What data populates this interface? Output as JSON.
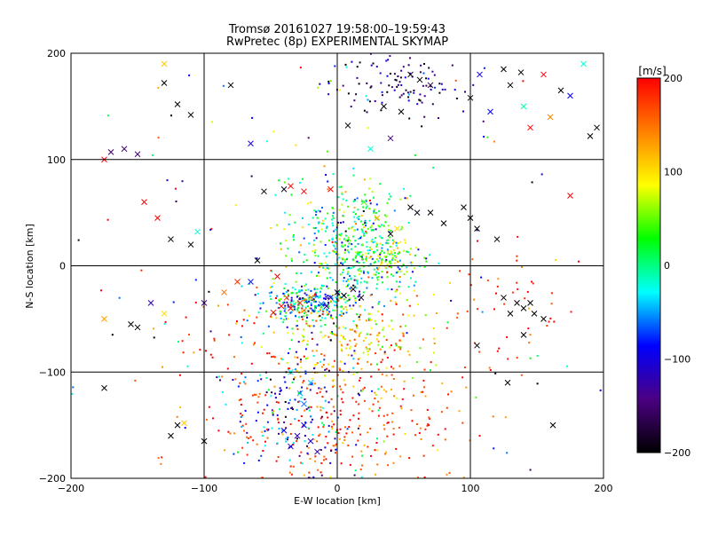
{
  "chart_data": {
    "type": "scatter",
    "title": "Tromsø 20161027 19:58:00–19:59:43",
    "subtitle": "RwPretec (8p) EXPERIMENTAL SKYMAP",
    "xlabel": "E-W location [km]",
    "ylabel": "N-S location [km]",
    "xlim": [
      -200,
      200
    ],
    "ylim": [
      -200,
      200
    ],
    "x_ticks": [
      -200,
      -100,
      0,
      100,
      200
    ],
    "y_ticks": [
      -200,
      -100,
      0,
      100,
      200
    ],
    "grid": true,
    "colorbar": {
      "label": "[m/s]",
      "range": [
        -200,
        200
      ],
      "ticks": [
        200,
        100,
        0,
        -100,
        -200
      ],
      "colors": [
        "#000000",
        "#4b0082",
        "#0000ff",
        "#00ffff",
        "#00ff00",
        "#ffff00",
        "#ff8000",
        "#ff0000"
      ]
    },
    "series": [
      {
        "marker": "dot",
        "clusters": [
          {
            "x": 10,
            "y": 20,
            "sx": 22,
            "sy": 28,
            "n": 420,
            "v": 10,
            "sv": 60
          },
          {
            "x": 40,
            "y": 5,
            "sx": 12,
            "sy": 12,
            "n": 120,
            "v": 40,
            "sv": 50
          },
          {
            "x": -20,
            "y": -35,
            "sx": 18,
            "sy": 8,
            "n": 260,
            "v": -40,
            "sv": 60
          },
          {
            "x": 10,
            "y": -70,
            "sx": 35,
            "sy": 25,
            "n": 260,
            "v": 110,
            "sv": 50
          },
          {
            "x": 10,
            "y": -150,
            "sx": 45,
            "sy": 30,
            "n": 260,
            "v": 170,
            "sv": 35
          },
          {
            "x": -30,
            "y": -130,
            "sx": 25,
            "sy": 40,
            "n": 180,
            "v": -90,
            "sv": 60
          },
          {
            "x": 50,
            "y": 170,
            "sx": 25,
            "sy": 15,
            "n": 110,
            "v": -150,
            "sv": 50
          },
          {
            "x": 130,
            "y": -40,
            "sx": 25,
            "sy": 35,
            "n": 50,
            "v": 180,
            "sv": 25
          },
          {
            "x": -80,
            "y": -100,
            "sx": 30,
            "sy": 40,
            "n": 60,
            "v": 175,
            "sv": 25
          },
          {
            "x": 0,
            "y": 0,
            "sx": 130,
            "sy": 130,
            "n": 160,
            "v": 0,
            "sv": 150
          }
        ]
      },
      {
        "marker": "x",
        "points": [
          {
            "x": -35,
            "y": -40,
            "v": 200
          },
          {
            "x": -42,
            "y": -38,
            "v": 190
          },
          {
            "x": -28,
            "y": -35,
            "v": 180
          },
          {
            "x": -48,
            "y": -44,
            "v": 200
          },
          {
            "x": -38,
            "y": -30,
            "v": 170
          },
          {
            "x": -25,
            "y": -42,
            "v": 150
          },
          {
            "x": -20,
            "y": -30,
            "v": 120
          },
          {
            "x": -12,
            "y": -36,
            "v": -60
          },
          {
            "x": -5,
            "y": -30,
            "v": -120
          },
          {
            "x": 0,
            "y": -25,
            "v": -200
          },
          {
            "x": 5,
            "y": -28,
            "v": -200
          },
          {
            "x": 12,
            "y": -22,
            "v": -180
          },
          {
            "x": -8,
            "y": -38,
            "v": -140
          },
          {
            "x": 18,
            "y": -30,
            "v": -190
          },
          {
            "x": -30,
            "y": -160,
            "v": -120
          },
          {
            "x": -20,
            "y": -165,
            "v": -100
          },
          {
            "x": -35,
            "y": -170,
            "v": -110
          },
          {
            "x": -25,
            "y": -150,
            "v": -90
          },
          {
            "x": -15,
            "y": -175,
            "v": -130
          },
          {
            "x": -40,
            "y": -155,
            "v": -100
          },
          {
            "x": -28,
            "y": -120,
            "v": -50
          },
          {
            "x": -20,
            "y": -110,
            "v": -40
          },
          {
            "x": -35,
            "y": -100,
            "v": -30
          },
          {
            "x": -25,
            "y": -130,
            "v": -60
          },
          {
            "x": 40,
            "y": 30,
            "v": -200
          },
          {
            "x": 55,
            "y": 55,
            "v": -200
          },
          {
            "x": 60,
            "y": 50,
            "v": -190
          },
          {
            "x": 70,
            "y": 50,
            "v": -200
          },
          {
            "x": 80,
            "y": 40,
            "v": -200
          },
          {
            "x": 95,
            "y": 55,
            "v": -200
          },
          {
            "x": 100,
            "y": 45,
            "v": -200
          },
          {
            "x": 105,
            "y": 35,
            "v": -200
          },
          {
            "x": 120,
            "y": 25,
            "v": -200
          },
          {
            "x": 30,
            "y": 45,
            "v": 120
          },
          {
            "x": 45,
            "y": 35,
            "v": 100
          },
          {
            "x": 20,
            "y": 60,
            "v": 40
          },
          {
            "x": 125,
            "y": -30,
            "v": -200
          },
          {
            "x": 135,
            "y": -35,
            "v": -200
          },
          {
            "x": 140,
            "y": -40,
            "v": -200
          },
          {
            "x": 145,
            "y": -35,
            "v": -200
          },
          {
            "x": 130,
            "y": -45,
            "v": -200
          },
          {
            "x": 148,
            "y": -45,
            "v": -200
          },
          {
            "x": 155,
            "y": -50,
            "v": -200
          },
          {
            "x": 140,
            "y": -65,
            "v": -200
          },
          {
            "x": 128,
            "y": -110,
            "v": -200
          },
          {
            "x": 162,
            "y": -150,
            "v": -200
          },
          {
            "x": 105,
            "y": -75,
            "v": -200
          },
          {
            "x": -55,
            "y": 70,
            "v": -200
          },
          {
            "x": -40,
            "y": 72,
            "v": -190
          },
          {
            "x": -35,
            "y": 75,
            "v": 200
          },
          {
            "x": -25,
            "y": 70,
            "v": 200
          },
          {
            "x": -5,
            "y": 72,
            "v": 200
          },
          {
            "x": -60,
            "y": 5,
            "v": -200
          },
          {
            "x": -75,
            "y": -15,
            "v": 180
          },
          {
            "x": -85,
            "y": -25,
            "v": 150
          },
          {
            "x": -65,
            "y": -15,
            "v": -80
          },
          {
            "x": -45,
            "y": -10,
            "v": 200
          },
          {
            "x": -100,
            "y": -35,
            "v": -140
          },
          {
            "x": -140,
            "y": -35,
            "v": -120
          },
          {
            "x": -155,
            "y": -55,
            "v": -200
          },
          {
            "x": -150,
            "y": -58,
            "v": -200
          },
          {
            "x": -130,
            "y": -45,
            "v": 100
          },
          {
            "x": -175,
            "y": -50,
            "v": 130
          },
          {
            "x": -125,
            "y": 25,
            "v": -200
          },
          {
            "x": -110,
            "y": 20,
            "v": -200
          },
          {
            "x": -105,
            "y": 32,
            "v": -20
          },
          {
            "x": -135,
            "y": 45,
            "v": 200
          },
          {
            "x": -145,
            "y": 60,
            "v": 200
          },
          {
            "x": -175,
            "y": 100,
            "v": 200
          },
          {
            "x": -170,
            "y": 107,
            "v": -150
          },
          {
            "x": -160,
            "y": 110,
            "v": -150
          },
          {
            "x": -150,
            "y": 105,
            "v": -150
          },
          {
            "x": -130,
            "y": 190,
            "v": 110
          },
          {
            "x": -120,
            "y": 152,
            "v": -200
          },
          {
            "x": -110,
            "y": 142,
            "v": -200
          },
          {
            "x": -130,
            "y": 172,
            "v": -200
          },
          {
            "x": -65,
            "y": 115,
            "v": -100
          },
          {
            "x": -80,
            "y": 170,
            "v": -200
          },
          {
            "x": -120,
            "y": -150,
            "v": -200
          },
          {
            "x": -115,
            "y": -148,
            "v": 110
          },
          {
            "x": -100,
            "y": -165,
            "v": -200
          },
          {
            "x": -175,
            "y": -115,
            "v": -200
          },
          {
            "x": -125,
            "y": -160,
            "v": -200
          },
          {
            "x": 35,
            "y": 150,
            "v": -200
          },
          {
            "x": 40,
            "y": 120,
            "v": -150
          },
          {
            "x": 25,
            "y": 110,
            "v": -20
          },
          {
            "x": 8,
            "y": 132,
            "v": -200
          },
          {
            "x": 55,
            "y": 180,
            "v": -200
          },
          {
            "x": 62,
            "y": 175,
            "v": -200
          },
          {
            "x": 70,
            "y": 170,
            "v": -180
          },
          {
            "x": 48,
            "y": 145,
            "v": -200
          },
          {
            "x": 100,
            "y": 158,
            "v": -200
          },
          {
            "x": 130,
            "y": 170,
            "v": -200
          },
          {
            "x": 138,
            "y": 182,
            "v": -200
          },
          {
            "x": 125,
            "y": 185,
            "v": -200
          },
          {
            "x": 140,
            "y": 150,
            "v": -10
          },
          {
            "x": 145,
            "y": 130,
            "v": 200
          },
          {
            "x": 160,
            "y": 140,
            "v": 140
          },
          {
            "x": 175,
            "y": 160,
            "v": -90
          },
          {
            "x": 195,
            "y": 130,
            "v": -200
          },
          {
            "x": 190,
            "y": 122,
            "v": -200
          },
          {
            "x": 168,
            "y": 165,
            "v": -200
          },
          {
            "x": 155,
            "y": 180,
            "v": 200
          },
          {
            "x": 185,
            "y": 190,
            "v": -20
          },
          {
            "x": 115,
            "y": 145,
            "v": -90
          },
          {
            "x": 175,
            "y": 66,
            "v": 200
          },
          {
            "x": 107,
            "y": 180,
            "v": -100
          }
        ]
      }
    ]
  }
}
